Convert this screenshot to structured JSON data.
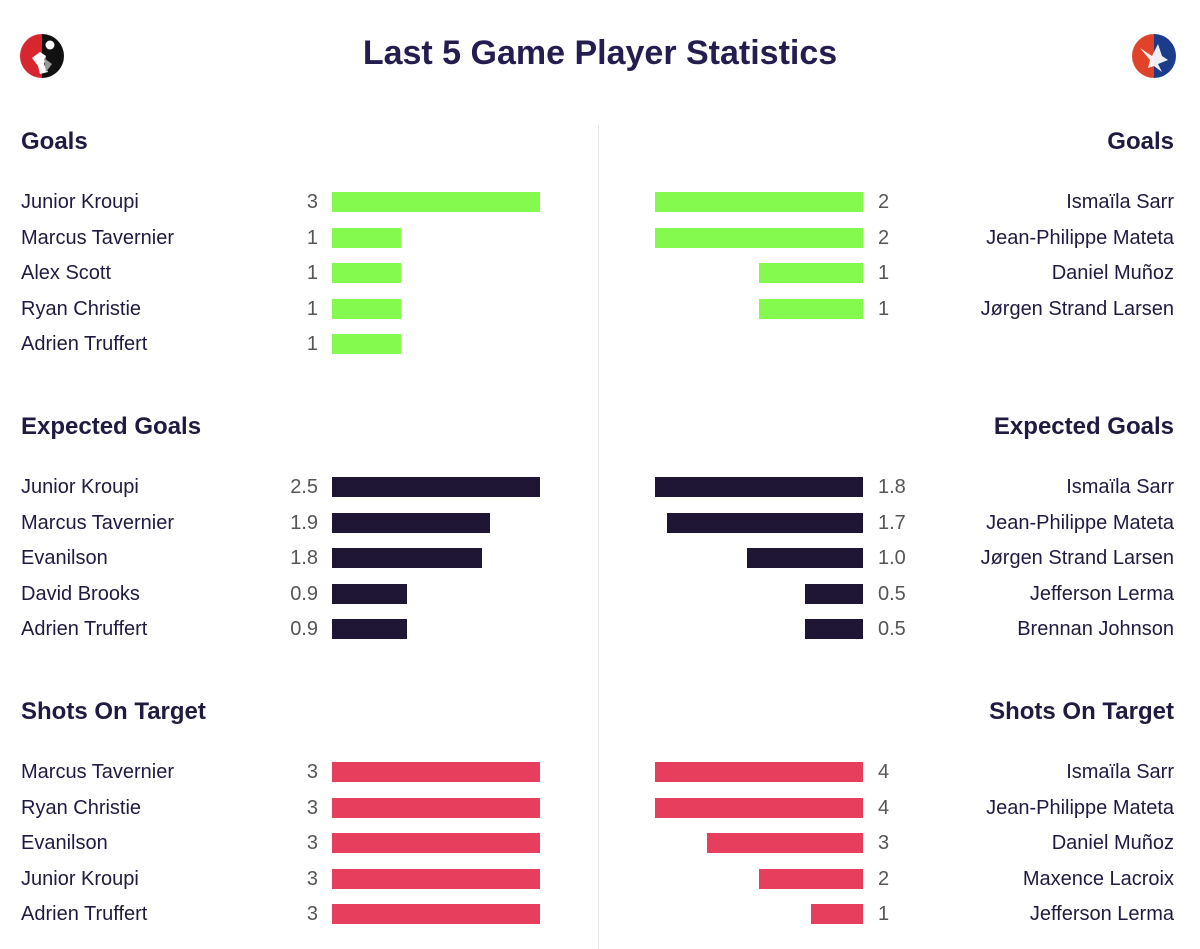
{
  "title": "Last 5 Game Player Statistics",
  "logos": {
    "home": "bournemouth-crest",
    "away": "crystal-palace-crest"
  },
  "colors": {
    "goals": "#84f94e",
    "expected_goals": "#1f1535",
    "shots_on_target": "#e83e5e"
  },
  "chart_data": [
    {
      "type": "bar",
      "title": "Goals",
      "color_key": "goals",
      "home": {
        "players": [
          "Junior Kroupi",
          "Marcus Tavernier",
          "Alex Scott",
          "Ryan Christie",
          "Adrien Truffert"
        ],
        "values": [
          3,
          1,
          1,
          1,
          1
        ]
      },
      "away": {
        "players": [
          "Ismaïla Sarr",
          "Jean-Philippe Mateta",
          "Daniel Muñoz",
          "Jørgen Strand Larsen"
        ],
        "values": [
          2,
          2,
          1,
          1
        ]
      }
    },
    {
      "type": "bar",
      "title": "Expected Goals",
      "color_key": "expected_goals",
      "home": {
        "players": [
          "Junior Kroupi",
          "Marcus Tavernier",
          "Evanilson",
          "David Brooks",
          "Adrien Truffert"
        ],
        "values": [
          "2.5",
          "1.9",
          "1.8",
          "0.9",
          "0.9"
        ]
      },
      "away": {
        "players": [
          "Ismaïla Sarr",
          "Jean-Philippe Mateta",
          "Jørgen Strand Larsen",
          "Jefferson Lerma",
          "Brennan Johnson"
        ],
        "values": [
          "1.8",
          "1.7",
          "1.0",
          "0.5",
          "0.5"
        ]
      }
    },
    {
      "type": "bar",
      "title": "Shots On Target",
      "color_key": "shots_on_target",
      "home": {
        "players": [
          "Marcus Tavernier",
          "Ryan Christie",
          "Evanilson",
          "Junior Kroupi",
          "Adrien Truffert"
        ],
        "values": [
          3,
          3,
          3,
          3,
          3
        ]
      },
      "away": {
        "players": [
          "Ismaïla Sarr",
          "Jean-Philippe Mateta",
          "Daniel Muñoz",
          "Maxence Lacroix",
          "Jefferson Lerma"
        ],
        "values": [
          4,
          4,
          3,
          2,
          1
        ]
      }
    }
  ]
}
